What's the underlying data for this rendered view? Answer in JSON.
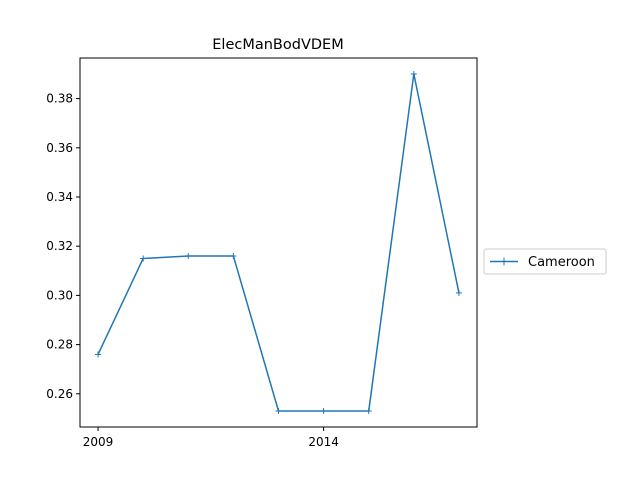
{
  "chart_data": {
    "type": "line",
    "title": "ElecManBodVDEM",
    "xlabel": "",
    "ylabel": "",
    "x": [
      2009,
      2010,
      2011,
      2012,
      2013,
      2014,
      2015,
      2016,
      2017
    ],
    "x_ticks": [
      2009,
      2014
    ],
    "y_ticks": [
      0.26,
      0.28,
      0.3,
      0.32,
      0.34,
      0.36,
      0.38
    ],
    "y_tick_labels": [
      "0.26",
      "0.28",
      "0.30",
      "0.32",
      "0.34",
      "0.36",
      "0.38"
    ],
    "xlim": [
      2008.6,
      2017.4
    ],
    "ylim": [
      0.2465,
      0.3965
    ],
    "grid": false,
    "legend_position": "right-outside",
    "series": [
      {
        "name": "Cameroon",
        "color": "#1f77b4",
        "marker": "+",
        "values": [
          0.276,
          0.315,
          0.316,
          0.316,
          0.253,
          0.253,
          0.253,
          0.39,
          0.301
        ]
      }
    ]
  }
}
